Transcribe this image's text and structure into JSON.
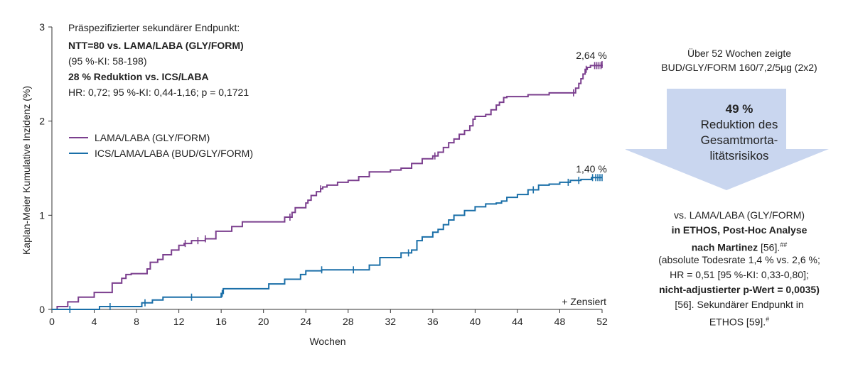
{
  "chart_data": {
    "type": "line",
    "ylabel": "Kaplan-Meier Kumulative Inzidenz (%)",
    "xlabel": "Wochen",
    "xlim": [
      0,
      52
    ],
    "ylim": [
      0,
      3
    ],
    "xticks": [
      "0",
      "4",
      "8",
      "12",
      "16",
      "20",
      "24",
      "28",
      "32",
      "36",
      "40",
      "44",
      "48",
      "52"
    ],
    "yticks": [
      "0",
      "1",
      "2",
      "3"
    ],
    "grid": false,
    "legend_position": "upper-left",
    "series": [
      {
        "name": "LAMA/LABA (GLY/FORM)",
        "color": "#7b3f8e",
        "end_label": "2,64 %",
        "x": [
          0,
          0.5,
          1.5,
          2.5,
          4,
          5.7,
          6.6,
          7,
          7.5,
          9,
          9.3,
          10,
          10.5,
          11.3,
          12,
          12.5,
          13.2,
          14.5,
          15.5,
          17,
          18,
          22,
          22.7,
          23,
          24,
          24.2,
          24.5,
          25,
          25.4,
          25.6,
          26,
          27,
          28,
          29,
          30,
          32,
          33,
          34,
          35,
          36,
          36.5,
          37,
          37.5,
          38,
          38.5,
          39,
          39.5,
          39.8,
          40,
          41,
          41.5,
          42,
          42.3,
          42.7,
          43,
          44,
          45,
          46,
          47,
          49,
          49.5,
          49.8,
          50,
          50.2,
          50.4,
          50.6,
          50.9,
          52
        ],
        "y": [
          0,
          0.03,
          0.08,
          0.13,
          0.18,
          0.28,
          0.33,
          0.37,
          0.38,
          0.43,
          0.5,
          0.53,
          0.58,
          0.63,
          0.68,
          0.7,
          0.73,
          0.75,
          0.83,
          0.88,
          0.93,
          0.98,
          1.03,
          1.08,
          1.13,
          1.16,
          1.21,
          1.25,
          1.28,
          1.3,
          1.32,
          1.35,
          1.37,
          1.41,
          1.46,
          1.48,
          1.5,
          1.55,
          1.6,
          1.63,
          1.67,
          1.72,
          1.77,
          1.81,
          1.86,
          1.9,
          1.95,
          2.02,
          2.05,
          2.07,
          2.12,
          2.17,
          2.2,
          2.25,
          2.26,
          2.26,
          2.28,
          2.28,
          2.3,
          2.3,
          2.35,
          2.4,
          2.45,
          2.5,
          2.55,
          2.57,
          2.59,
          2.6
        ],
        "censored_x": [
          12.6,
          13.8,
          14.5,
          22.5,
          25.4,
          36.2,
          49.3,
          50.5,
          51.3,
          51.5,
          51.7,
          51.9,
          52
        ]
      },
      {
        "name": "ICS/LAMA/LABA (BUD/GLY/FORM)",
        "color": "#1a6fa8",
        "end_label": "1,40 %",
        "x": [
          0,
          4.5,
          8.5,
          9.5,
          10.5,
          16,
          16.2,
          20.5,
          22,
          23.5,
          24,
          25.5,
          29,
          30,
          31,
          33,
          34,
          34.5,
          35,
          36,
          36.5,
          37,
          37.5,
          38,
          39,
          40,
          41,
          42,
          42.5,
          43,
          44,
          45,
          46,
          47,
          48,
          49,
          50,
          51,
          52
        ],
        "y": [
          0,
          0.03,
          0.07,
          0.1,
          0.13,
          0.17,
          0.22,
          0.27,
          0.32,
          0.37,
          0.41,
          0.42,
          0.42,
          0.47,
          0.55,
          0.6,
          0.63,
          0.73,
          0.77,
          0.82,
          0.85,
          0.9,
          0.95,
          1.0,
          1.05,
          1.09,
          1.12,
          1.13,
          1.15,
          1.19,
          1.22,
          1.27,
          1.32,
          1.33,
          1.35,
          1.37,
          1.38,
          1.4,
          1.4
        ],
        "censored_x": [
          1.7,
          5.5,
          8.8,
          13.2,
          16.1,
          25.5,
          28.5,
          33.7,
          45.5,
          48.8,
          49.8,
          51.1,
          51.4,
          51.6,
          51.8,
          52
        ]
      }
    ]
  },
  "annotation": {
    "line1": "Präspezifizierter sekundärer Endpunkt:",
    "line2": "NTT=80 vs. LAMA/LABA (GLY/FORM)",
    "line3": "(95 %-KI: 58-198)",
    "line4": "28 % Reduktion vs. ICS/LABA",
    "line5": "HR: 0,72; 95 %-KI: 0,44-1,16; p = 0,1721"
  },
  "censor_note": "+ Zensiert",
  "right_panel": {
    "intro1": "Über 52 Wochen zeigte",
    "intro2": "BUD/GLY/FORM 160/7,2/5µg (2x2)",
    "arrow_color": "#c9d6ef",
    "arrow_pct": "49 %",
    "arrow_l1": "Reduktion des",
    "arrow_l2": "Gesamtmorta-",
    "arrow_l3": "litätsrisikos",
    "d1": "vs. LAMA/LABA (GLY/FORM)",
    "d2": "in ETHOS, Post-Hoc Analyse",
    "d3": "nach Martinez",
    "d3b": " [56].",
    "d3sup": "##",
    "d4": "(absolute Todesrate 1,4 % vs. 2,6 %;",
    "d5": "HR = 0,51 [95 %-KI: 0,33-0,80];",
    "d6": "nicht-adjustierter p-Wert = 0,0035)",
    "d7": "[56]. Sekundärer Endpunkt in",
    "d8": "ETHOS [59].",
    "d8sup": "#"
  }
}
